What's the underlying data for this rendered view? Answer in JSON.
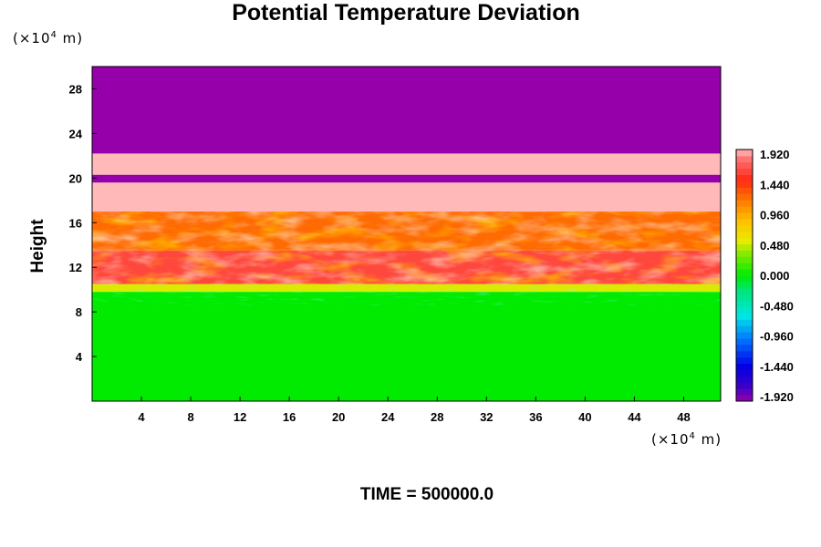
{
  "chart_data": {
    "type": "heatmap",
    "title": "Potential Temperature Deviation",
    "ylabel": "Height",
    "yunit": {
      "prefix": "(×10",
      "exp": "4",
      "suffix": " m)"
    },
    "xunit": {
      "prefix": "(×10",
      "exp": "4",
      "suffix": " m)"
    },
    "footer": "TIME = 500000.0",
    "xlim": [
      0,
      51
    ],
    "ylim": [
      0,
      30
    ],
    "x_ticks": [
      "4",
      "8",
      "12",
      "16",
      "20",
      "24",
      "28",
      "32",
      "36",
      "40",
      "44",
      "48"
    ],
    "y_ticks": [
      "4",
      "8",
      "12",
      "16",
      "20",
      "24",
      "28"
    ],
    "colorbar": {
      "labels": [
        "1.920",
        "1.440",
        "0.960",
        "0.480",
        "0.000",
        "-0.480",
        "-0.960",
        "-1.440",
        "-1.920"
      ],
      "range": [
        -1.92,
        1.92
      ]
    },
    "field": {
      "layers": [
        {
          "y": [
            0,
            9.8
          ],
          "value": 0.0
        },
        {
          "y": [
            9.8,
            10.5
          ],
          "value": 0.5
        },
        {
          "y": [
            10.5,
            13.5
          ],
          "value": 1.6
        },
        {
          "y": [
            13.5,
            17.0
          ],
          "value": 1.2
        },
        {
          "y": [
            17.0,
            19.6
          ],
          "value": 1.95
        },
        {
          "y": [
            19.6,
            20.3
          ],
          "value": -1.92
        },
        {
          "y": [
            20.3,
            22.2
          ],
          "value": 1.95
        },
        {
          "y": [
            22.2,
            30
          ],
          "value": -1.92
        }
      ]
    }
  }
}
